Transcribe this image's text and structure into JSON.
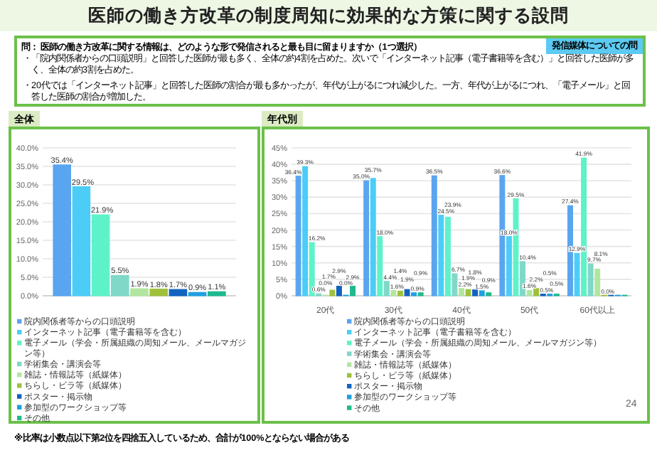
{
  "chart_data": [
    {
      "type": "other",
      "title": "医師の働き方改革の制度周知に効果的な方策に関する設問",
      "subtitle": "問： 医師の働き方改革に関する情報は、どのような形で発信されると最も目に留まりますか（1つ選択）",
      "annotations": [
        "発信媒体についての問",
        "・「院内関係者からの口頭説明」と回答した医師が最も多く、全体の約4割を占めた。次いで「インターネット記事（電子書籍等を含む）」と回答した医師が多く、全体の約3割を占めた。",
        "・20代では「インターネット記事」と回答した医師の割合が最も多かったが、年代が上がるにつれ減少した。一方、年代が上がるにつれ、「電子メール」と回答した医師の割合が増加した。",
        "※比率は小数点以下第2位を四捨五入しているため、合計が100%とならない場合がある",
        "24"
      ]
    },
    {
      "type": "bar",
      "title": "全体",
      "categories": [
        null
      ],
      "ylim": [
        0,
        40
      ],
      "yticks": [
        {
          "value": 0,
          "label": "0.0%"
        },
        {
          "value": 5,
          "label": "5.0%"
        },
        {
          "value": 10,
          "label": "10.0%"
        },
        {
          "value": 15,
          "label": "15.0%"
        },
        {
          "value": 20,
          "label": "20.0%"
        },
        {
          "value": 25,
          "label": "25.0%"
        },
        {
          "value": 30,
          "label": "30.0%"
        },
        {
          "value": 35,
          "label": "35.0%"
        },
        {
          "value": 40,
          "label": "40.0%"
        }
      ],
      "grid": "y",
      "legend": "bottom",
      "series": [
        {
          "name": "院内関係者等からの口頭説明",
          "color": "#5aa5ef",
          "values": [
            35.4
          ],
          "value_labels": [
            "35.4%"
          ]
        },
        {
          "name": "インターネット記事（電子書籍等を含む）",
          "color": "#4ccdf7",
          "values": [
            29.5
          ],
          "value_labels": [
            "29.5%"
          ]
        },
        {
          "name": "電子メール（学会・所属組織の周知メール、メールマガジン等）",
          "color": "#5ef2c8",
          "values": [
            21.9
          ],
          "value_labels": [
            "21.9%"
          ]
        },
        {
          "name": "学術集会・講演会等",
          "color": "#80d8c8",
          "values": [
            5.5
          ],
          "value_labels": [
            "5.5%"
          ]
        },
        {
          "name": "雑誌・情報誌等（紙媒体）",
          "color": "#b2e6a0",
          "values": [
            1.9
          ],
          "value_labels": [
            "1.9%"
          ]
        },
        {
          "name": "ちらし・ビラ等（紙媒体）",
          "color": "#a0c03c",
          "values": [
            1.8
          ],
          "value_labels": [
            "1.8%"
          ]
        },
        {
          "name": "ポスター・掲示物",
          "color": "#1262bf",
          "values": [
            1.7
          ],
          "value_labels": [
            "1.7%"
          ]
        },
        {
          "name": "参加型のワークショップ等",
          "color": "#1ea0e0",
          "values": [
            0.9
          ],
          "value_labels": [
            "0.9%"
          ]
        },
        {
          "name": "その他",
          "color": "#1fb98e",
          "values": [
            1.1
          ],
          "value_labels": [
            "1.1%"
          ]
        }
      ]
    },
    {
      "type": "bar",
      "title": "年代別",
      "categories": [
        "20代",
        "30代",
        "40代",
        "50代",
        "60代以上"
      ],
      "ylim": [
        0,
        45
      ],
      "yticks": [
        {
          "value": 0,
          "label": "0%"
        },
        {
          "value": 5,
          "label": "5%"
        },
        {
          "value": 10,
          "label": "10%"
        },
        {
          "value": 15,
          "label": "15%"
        },
        {
          "value": 20,
          "label": "20%"
        },
        {
          "value": 25,
          "label": "25%"
        },
        {
          "value": 30,
          "label": "30%"
        },
        {
          "value": 35,
          "label": "35%"
        },
        {
          "value": 40,
          "label": "40%"
        },
        {
          "value": 45,
          "label": "45%"
        }
      ],
      "grid": "y",
      "legend": "bottom",
      "series": [
        {
          "name": "院内関係者等からの口頭説明",
          "color": "#5aa5ef",
          "values": [
            36.4,
            35.0,
            36.5,
            36.6,
            27.4
          ],
          "value_labels": [
            "36.4%",
            "35.0%",
            "36.5%",
            "36.6%",
            "27.4%"
          ]
        },
        {
          "name": "インターネット記事（電子書籍等を含む）",
          "color": "#4ccdf7",
          "values": [
            39.3,
            35.7,
            24.5,
            18.0,
            12.9
          ],
          "value_labels": [
            "39.3%",
            "35.7%",
            "24.5%",
            "18.0%",
            "12.9%"
          ]
        },
        {
          "name": "電子メール（学会・所属組織の周知メール、メールマガジン等）",
          "color": "#5ef2c8",
          "values": [
            16.2,
            18.0,
            23.9,
            29.5,
            41.9
          ],
          "value_labels": [
            "16.2%",
            "18.0%",
            "23.9%",
            "29.5%",
            "41.9%"
          ]
        },
        {
          "name": "学術集会・講演会等",
          "color": "#80d8c8",
          "values": [
            0.6,
            4.4,
            6.7,
            10.4,
            9.7
          ],
          "value_labels": [
            "0.6%",
            "4.4%",
            "6.7%",
            "10.4%",
            "9.7%"
          ]
        },
        {
          "name": "雑誌・情報誌等（紙媒体）",
          "color": "#b2e6a0",
          "values": [
            0.0,
            1.6,
            2.2,
            1.6,
            8.1
          ],
          "value_labels": [
            "0.0%",
            "1.6%",
            "2.2%",
            "1.6%",
            "8.1%"
          ]
        },
        {
          "name": "ちらし・ビラ等（紙媒体）",
          "color": "#a0c03c",
          "values": [
            1.7,
            1.4,
            1.9,
            2.2,
            0.0
          ],
          "value_labels": [
            "1.7%",
            "1.4%",
            "1.9%",
            "2.2%",
            "0.0%"
          ]
        },
        {
          "name": "ポスター・掲示物",
          "color": "#1262bf",
          "values": [
            2.9,
            1.9,
            1.8,
            0.5,
            0.0
          ],
          "value_labels": [
            "2.9%",
            "1.9%",
            "1.8%",
            "0.5%",
            null
          ]
        },
        {
          "name": "参加型のワークショップ等",
          "color": "#1ea0e0",
          "values": [
            0.0,
            0.9,
            1.5,
            0.5,
            0.0
          ],
          "value_labels": [
            "0.0%",
            "0.9%",
            "1.5%",
            "0.5%",
            null
          ]
        },
        {
          "name": "その他",
          "color": "#1fb98e",
          "values": [
            2.9,
            0.9,
            0.9,
            0.5,
            0.0
          ],
          "value_labels": [
            "2.9%",
            "0.9%",
            "0.9%",
            "0.5%",
            null
          ]
        }
      ]
    }
  ]
}
